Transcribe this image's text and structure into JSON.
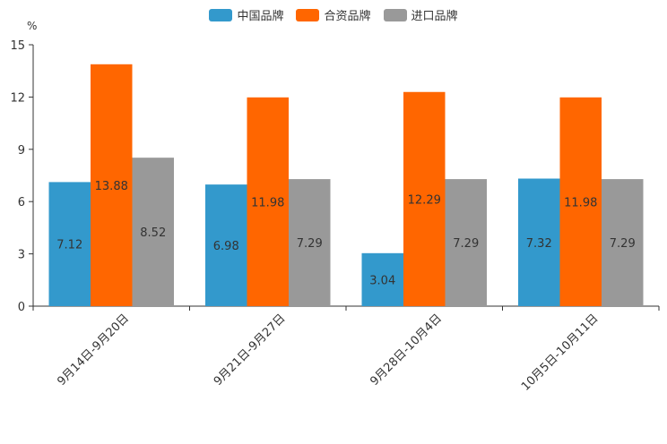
{
  "chart_data": {
    "type": "bar",
    "unit_label": "%",
    "categories": [
      "9月14日-9月20日",
      "9月21日-9月27日",
      "9月28日-10月4日",
      "10月5日-10月11日"
    ],
    "series": [
      {
        "name": "中国品牌",
        "color": "#3399cc",
        "values": [
          7.12,
          6.98,
          3.04,
          7.32
        ],
        "labels": [
          "7.12",
          "6.98",
          "3.04",
          "7.32"
        ]
      },
      {
        "name": "合资品牌",
        "color": "#ff6600",
        "values": [
          13.88,
          11.98,
          12.29,
          11.98
        ],
        "labels": [
          "13.88",
          "11.98",
          "12.29",
          "11.98"
        ]
      },
      {
        "name": "进口品牌",
        "color": "#999999",
        "values": [
          8.52,
          7.29,
          7.29,
          7.29
        ],
        "labels": [
          "8.52",
          "7.29",
          "7.29",
          "7.29"
        ]
      }
    ],
    "yticks": [
      "0",
      "3",
      "6",
      "9",
      "12",
      "15"
    ],
    "ylim": [
      0,
      15
    ],
    "legend_position": "top-center",
    "grid": false
  }
}
